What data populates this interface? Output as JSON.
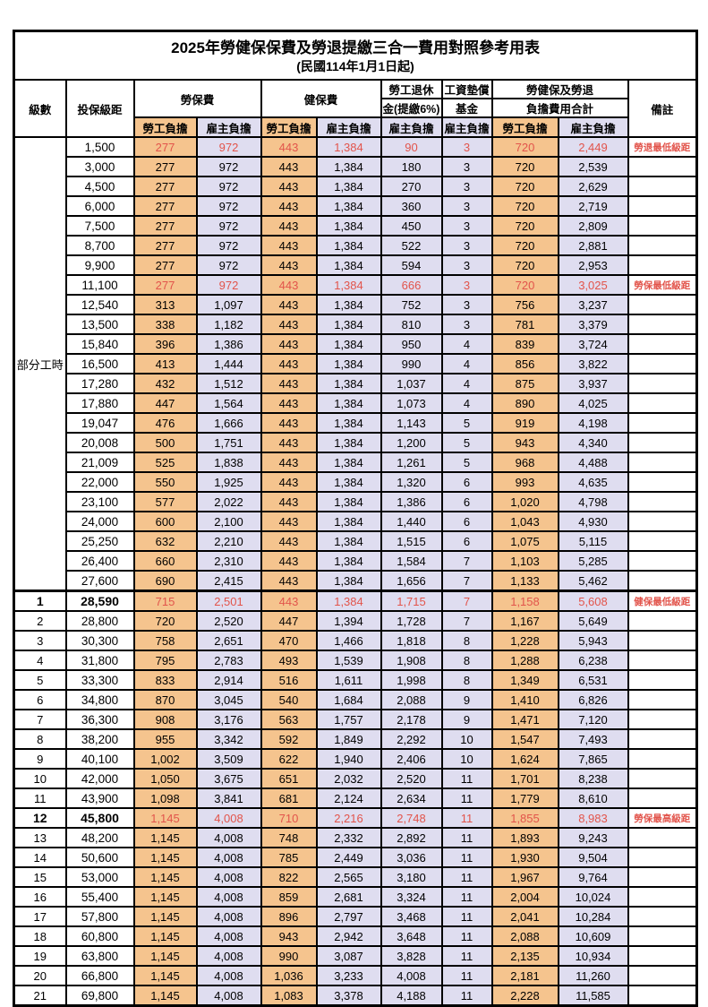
{
  "title": "2025年勞健保保費及勞退提繳三合一費用對照參考用表",
  "subtitle": "(民國114年1月1日起)",
  "colors": {
    "employee_col_bg": "#f5c48e",
    "employer_col_bg": "#dfddf0",
    "highlight_text": "#e2544b",
    "border": "#000000"
  },
  "header": {
    "level": "級數",
    "bracket": "投保級距",
    "labor": "勞保費",
    "health": "健保費",
    "pension1": "勞工退休",
    "pension2": "金(提繳6%)",
    "fund1": "工資墊償",
    "fund2": "基金",
    "total1": "勞健保及勞退",
    "total2": "負擔費用合計",
    "remark": "備註",
    "employee": "勞工負擔",
    "employer": "雇主負擔"
  },
  "part_time": {
    "label": "部分工時",
    "span": 23
  },
  "rows": [
    {
      "cells": [
        "",
        "1,500",
        "277",
        "972",
        "443",
        "1,384",
        "90",
        "3",
        "720",
        "2,449"
      ],
      "remark": "勞退最低級距",
      "highlight": true
    },
    {
      "cells": [
        "",
        "3,000",
        "277",
        "972",
        "443",
        "1,384",
        "180",
        "3",
        "720",
        "2,539"
      ],
      "remark": ""
    },
    {
      "cells": [
        "",
        "4,500",
        "277",
        "972",
        "443",
        "1,384",
        "270",
        "3",
        "720",
        "2,629"
      ],
      "remark": ""
    },
    {
      "cells": [
        "",
        "6,000",
        "277",
        "972",
        "443",
        "1,384",
        "360",
        "3",
        "720",
        "2,719"
      ],
      "remark": ""
    },
    {
      "cells": [
        "",
        "7,500",
        "277",
        "972",
        "443",
        "1,384",
        "450",
        "3",
        "720",
        "2,809"
      ],
      "remark": ""
    },
    {
      "cells": [
        "",
        "8,700",
        "277",
        "972",
        "443",
        "1,384",
        "522",
        "3",
        "720",
        "2,881"
      ],
      "remark": ""
    },
    {
      "cells": [
        "",
        "9,900",
        "277",
        "972",
        "443",
        "1,384",
        "594",
        "3",
        "720",
        "2,953"
      ],
      "remark": ""
    },
    {
      "cells": [
        "",
        "11,100",
        "277",
        "972",
        "443",
        "1,384",
        "666",
        "3",
        "720",
        "3,025"
      ],
      "remark": "勞保最低級距",
      "highlight": true
    },
    {
      "cells": [
        "",
        "12,540",
        "313",
        "1,097",
        "443",
        "1,384",
        "752",
        "3",
        "756",
        "3,237"
      ],
      "remark": ""
    },
    {
      "cells": [
        "",
        "13,500",
        "338",
        "1,182",
        "443",
        "1,384",
        "810",
        "3",
        "781",
        "3,379"
      ],
      "remark": ""
    },
    {
      "cells": [
        "",
        "15,840",
        "396",
        "1,386",
        "443",
        "1,384",
        "950",
        "4",
        "839",
        "3,724"
      ],
      "remark": ""
    },
    {
      "cells": [
        "",
        "16,500",
        "413",
        "1,444",
        "443",
        "1,384",
        "990",
        "4",
        "856",
        "3,822"
      ],
      "remark": ""
    },
    {
      "cells": [
        "",
        "17,280",
        "432",
        "1,512",
        "443",
        "1,384",
        "1,037",
        "4",
        "875",
        "3,937"
      ],
      "remark": ""
    },
    {
      "cells": [
        "",
        "17,880",
        "447",
        "1,564",
        "443",
        "1,384",
        "1,073",
        "4",
        "890",
        "4,025"
      ],
      "remark": ""
    },
    {
      "cells": [
        "",
        "19,047",
        "476",
        "1,666",
        "443",
        "1,384",
        "1,143",
        "5",
        "919",
        "4,198"
      ],
      "remark": ""
    },
    {
      "cells": [
        "",
        "20,008",
        "500",
        "1,751",
        "443",
        "1,384",
        "1,200",
        "5",
        "943",
        "4,340"
      ],
      "remark": ""
    },
    {
      "cells": [
        "",
        "21,009",
        "525",
        "1,838",
        "443",
        "1,384",
        "1,261",
        "5",
        "968",
        "4,488"
      ],
      "remark": ""
    },
    {
      "cells": [
        "",
        "22,000",
        "550",
        "1,925",
        "443",
        "1,384",
        "1,320",
        "6",
        "993",
        "4,635"
      ],
      "remark": ""
    },
    {
      "cells": [
        "",
        "23,100",
        "577",
        "2,022",
        "443",
        "1,384",
        "1,386",
        "6",
        "1,020",
        "4,798"
      ],
      "remark": ""
    },
    {
      "cells": [
        "",
        "24,000",
        "600",
        "2,100",
        "443",
        "1,384",
        "1,440",
        "6",
        "1,043",
        "4,930"
      ],
      "remark": ""
    },
    {
      "cells": [
        "",
        "25,250",
        "632",
        "2,210",
        "443",
        "1,384",
        "1,515",
        "6",
        "1,075",
        "5,115"
      ],
      "remark": ""
    },
    {
      "cells": [
        "",
        "26,400",
        "660",
        "2,310",
        "443",
        "1,384",
        "1,584",
        "7",
        "1,103",
        "5,285"
      ],
      "remark": ""
    },
    {
      "cells": [
        "",
        "27,600",
        "690",
        "2,415",
        "443",
        "1,384",
        "1,656",
        "7",
        "1,133",
        "5,462"
      ],
      "remark": ""
    },
    {
      "cells": [
        "1",
        "28,590",
        "715",
        "2,501",
        "443",
        "1,384",
        "1,715",
        "7",
        "1,158",
        "5,608"
      ],
      "remark": "健保最低級距",
      "highlight": true,
      "bold": true
    },
    {
      "cells": [
        "2",
        "28,800",
        "720",
        "2,520",
        "447",
        "1,394",
        "1,728",
        "7",
        "1,167",
        "5,649"
      ],
      "remark": ""
    },
    {
      "cells": [
        "3",
        "30,300",
        "758",
        "2,651",
        "470",
        "1,466",
        "1,818",
        "8",
        "1,228",
        "5,943"
      ],
      "remark": ""
    },
    {
      "cells": [
        "4",
        "31,800",
        "795",
        "2,783",
        "493",
        "1,539",
        "1,908",
        "8",
        "1,288",
        "6,238"
      ],
      "remark": ""
    },
    {
      "cells": [
        "5",
        "33,300",
        "833",
        "2,914",
        "516",
        "1,611",
        "1,998",
        "8",
        "1,349",
        "6,531"
      ],
      "remark": ""
    },
    {
      "cells": [
        "6",
        "34,800",
        "870",
        "3,045",
        "540",
        "1,684",
        "2,088",
        "9",
        "1,410",
        "6,826"
      ],
      "remark": ""
    },
    {
      "cells": [
        "7",
        "36,300",
        "908",
        "3,176",
        "563",
        "1,757",
        "2,178",
        "9",
        "1,471",
        "7,120"
      ],
      "remark": ""
    },
    {
      "cells": [
        "8",
        "38,200",
        "955",
        "3,342",
        "592",
        "1,849",
        "2,292",
        "10",
        "1,547",
        "7,493"
      ],
      "remark": ""
    },
    {
      "cells": [
        "9",
        "40,100",
        "1,002",
        "3,509",
        "622",
        "1,940",
        "2,406",
        "10",
        "1,624",
        "7,865"
      ],
      "remark": ""
    },
    {
      "cells": [
        "10",
        "42,000",
        "1,050",
        "3,675",
        "651",
        "2,032",
        "2,520",
        "11",
        "1,701",
        "8,238"
      ],
      "remark": ""
    },
    {
      "cells": [
        "11",
        "43,900",
        "1,098",
        "3,841",
        "681",
        "2,124",
        "2,634",
        "11",
        "1,779",
        "8,610"
      ],
      "remark": ""
    },
    {
      "cells": [
        "12",
        "45,800",
        "1,145",
        "4,008",
        "710",
        "2,216",
        "2,748",
        "11",
        "1,855",
        "8,983"
      ],
      "remark": "勞保最高級距",
      "highlight": true,
      "bold": true
    },
    {
      "cells": [
        "13",
        "48,200",
        "1,145",
        "4,008",
        "748",
        "2,332",
        "2,892",
        "11",
        "1,893",
        "9,243"
      ],
      "remark": ""
    },
    {
      "cells": [
        "14",
        "50,600",
        "1,145",
        "4,008",
        "785",
        "2,449",
        "3,036",
        "11",
        "1,930",
        "9,504"
      ],
      "remark": ""
    },
    {
      "cells": [
        "15",
        "53,000",
        "1,145",
        "4,008",
        "822",
        "2,565",
        "3,180",
        "11",
        "1,967",
        "9,764"
      ],
      "remark": ""
    },
    {
      "cells": [
        "16",
        "55,400",
        "1,145",
        "4,008",
        "859",
        "2,681",
        "3,324",
        "11",
        "2,004",
        "10,024"
      ],
      "remark": ""
    },
    {
      "cells": [
        "17",
        "57,800",
        "1,145",
        "4,008",
        "896",
        "2,797",
        "3,468",
        "11",
        "2,041",
        "10,284"
      ],
      "remark": ""
    },
    {
      "cells": [
        "18",
        "60,800",
        "1,145",
        "4,008",
        "943",
        "2,942",
        "3,648",
        "11",
        "2,088",
        "10,609"
      ],
      "remark": ""
    },
    {
      "cells": [
        "19",
        "63,800",
        "1,145",
        "4,008",
        "990",
        "3,087",
        "3,828",
        "11",
        "2,135",
        "10,934"
      ],
      "remark": ""
    },
    {
      "cells": [
        "20",
        "66,800",
        "1,145",
        "4,008",
        "1,036",
        "3,233",
        "4,008",
        "11",
        "2,181",
        "11,260"
      ],
      "remark": ""
    },
    {
      "cells": [
        "21",
        "69,800",
        "1,145",
        "4,008",
        "1,083",
        "3,378",
        "4,188",
        "11",
        "2,228",
        "11,585"
      ],
      "remark": ""
    }
  ]
}
